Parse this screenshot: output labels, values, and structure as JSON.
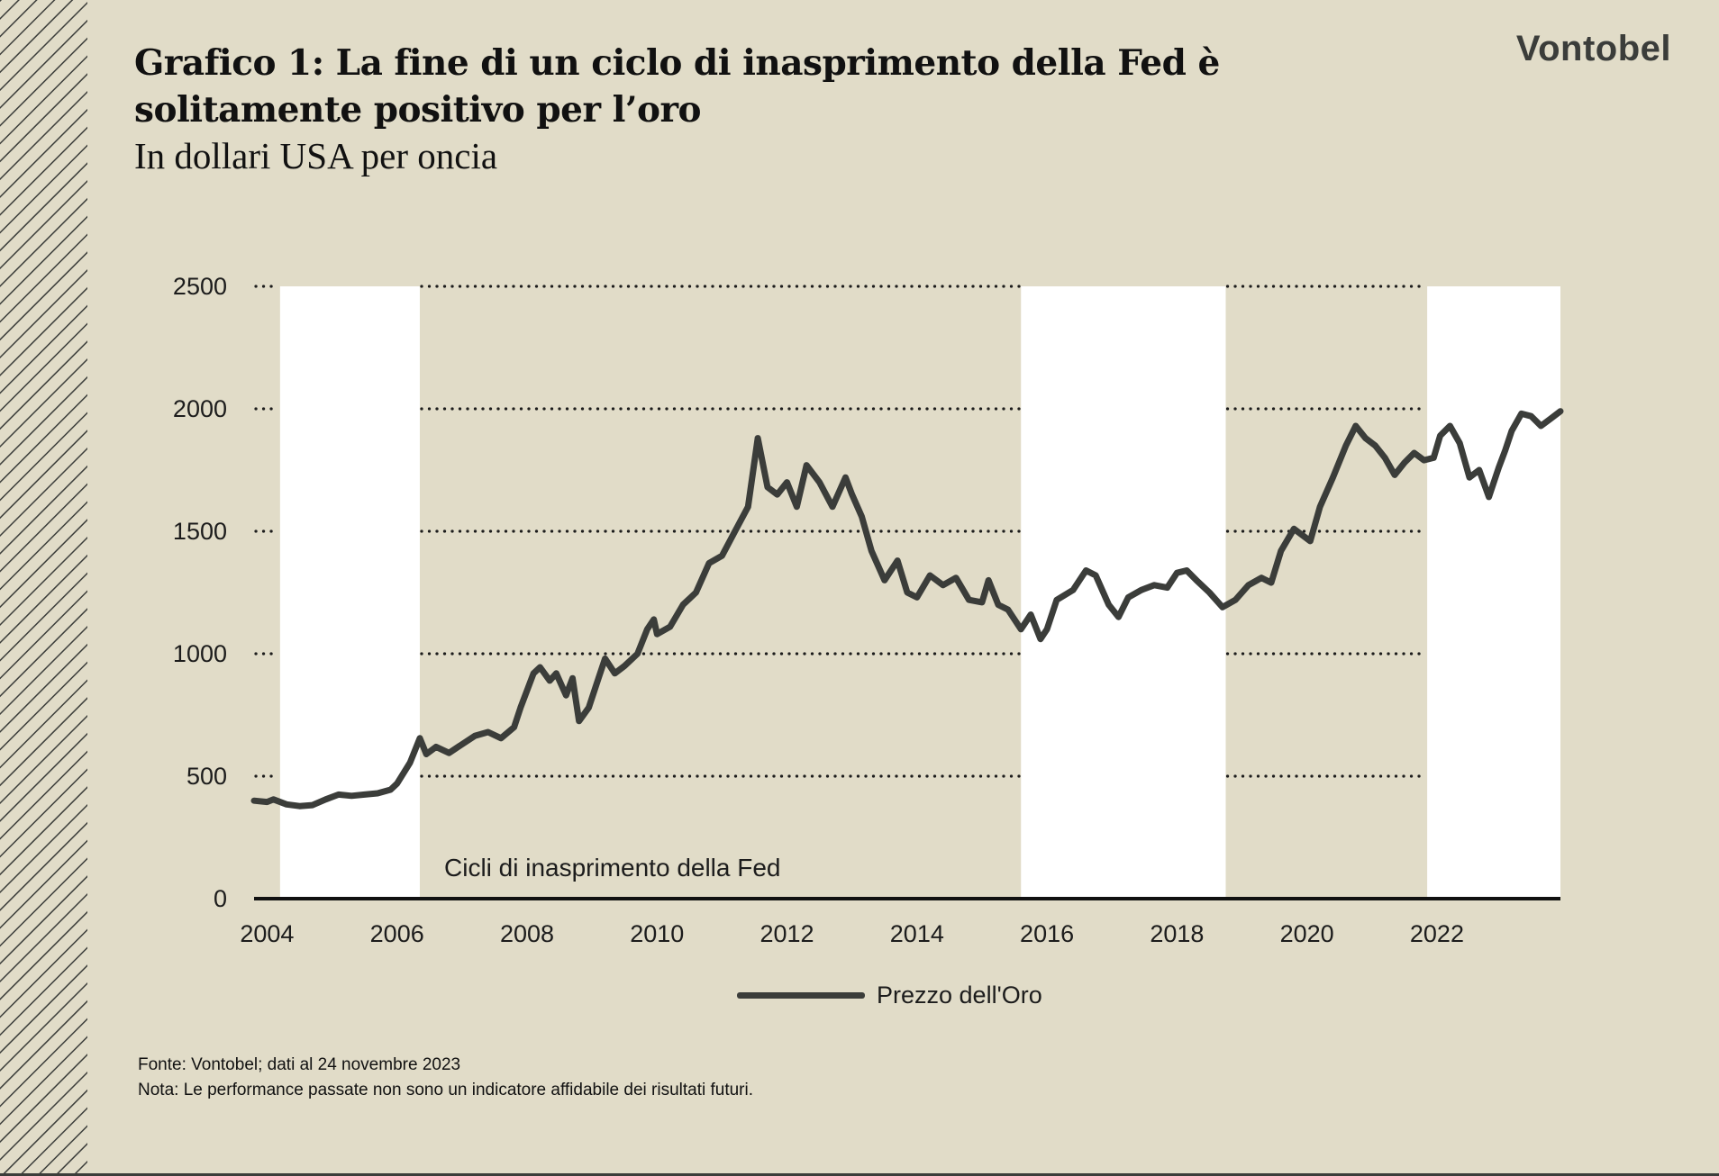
{
  "header": {
    "title": "Grafico 1: La fine di un ciclo di inasprimento della Fed è solitamente positivo per l’oro",
    "subtitle": "In dollari USA per oncia",
    "logo": "Vontobel"
  },
  "chart_data": {
    "type": "line",
    "title": "Grafico 1: La fine di un ciclo di inasprimento della Fed è solitamente positivo per l’oro",
    "subtitle": "In dollari USA per oncia",
    "xlabel": "",
    "ylabel": "",
    "xlim": [
      2003.8,
      2023.9
    ],
    "ylim": [
      0,
      2500
    ],
    "y_ticks": [
      0,
      500,
      1000,
      1500,
      2000,
      2500
    ],
    "x_ticks": [
      2004,
      2006,
      2008,
      2010,
      2012,
      2014,
      2016,
      2018,
      2020,
      2022
    ],
    "gridlines": "dotted horizontal",
    "legend_position": "bottom-center",
    "shaded_regions_label": "Cicli di inasprimento della Fed",
    "shaded_regions": [
      [
        2004.2,
        2006.35
      ],
      [
        2015.6,
        2018.75
      ],
      [
        2021.85,
        2023.9
      ]
    ],
    "series": [
      {
        "name": "Prezzo dell'Oro",
        "color": "#3b3d3a",
        "points": [
          [
            2003.8,
            400
          ],
          [
            2004.0,
            395
          ],
          [
            2004.1,
            405
          ],
          [
            2004.3,
            385
          ],
          [
            2004.5,
            378
          ],
          [
            2004.7,
            382
          ],
          [
            2004.9,
            405
          ],
          [
            2005.1,
            425
          ],
          [
            2005.3,
            420
          ],
          [
            2005.5,
            425
          ],
          [
            2005.7,
            430
          ],
          [
            2005.9,
            445
          ],
          [
            2006.0,
            470
          ],
          [
            2006.2,
            555
          ],
          [
            2006.35,
            655
          ],
          [
            2006.45,
            590
          ],
          [
            2006.6,
            620
          ],
          [
            2006.8,
            595
          ],
          [
            2007.0,
            630
          ],
          [
            2007.2,
            665
          ],
          [
            2007.4,
            680
          ],
          [
            2007.6,
            655
          ],
          [
            2007.8,
            700
          ],
          [
            2007.9,
            780
          ],
          [
            2008.1,
            920
          ],
          [
            2008.2,
            945
          ],
          [
            2008.35,
            890
          ],
          [
            2008.45,
            920
          ],
          [
            2008.6,
            830
          ],
          [
            2008.7,
            900
          ],
          [
            2008.8,
            725
          ],
          [
            2008.95,
            780
          ],
          [
            2009.1,
            900
          ],
          [
            2009.2,
            980
          ],
          [
            2009.35,
            920
          ],
          [
            2009.5,
            950
          ],
          [
            2009.7,
            1000
          ],
          [
            2009.85,
            1100
          ],
          [
            2009.95,
            1140
          ],
          [
            2010.0,
            1080
          ],
          [
            2010.2,
            1110
          ],
          [
            2010.4,
            1200
          ],
          [
            2010.6,
            1250
          ],
          [
            2010.8,
            1370
          ],
          [
            2011.0,
            1400
          ],
          [
            2011.2,
            1500
          ],
          [
            2011.4,
            1600
          ],
          [
            2011.55,
            1880
          ],
          [
            2011.7,
            1680
          ],
          [
            2011.85,
            1650
          ],
          [
            2012.0,
            1700
          ],
          [
            2012.15,
            1600
          ],
          [
            2012.3,
            1770
          ],
          [
            2012.5,
            1700
          ],
          [
            2012.7,
            1600
          ],
          [
            2012.9,
            1720
          ],
          [
            2013.0,
            1650
          ],
          [
            2013.15,
            1560
          ],
          [
            2013.3,
            1420
          ],
          [
            2013.5,
            1300
          ],
          [
            2013.7,
            1380
          ],
          [
            2013.85,
            1250
          ],
          [
            2014.0,
            1230
          ],
          [
            2014.2,
            1320
          ],
          [
            2014.4,
            1280
          ],
          [
            2014.6,
            1310
          ],
          [
            2014.8,
            1220
          ],
          [
            2015.0,
            1210
          ],
          [
            2015.1,
            1300
          ],
          [
            2015.25,
            1200
          ],
          [
            2015.4,
            1180
          ],
          [
            2015.6,
            1100
          ],
          [
            2015.75,
            1160
          ],
          [
            2015.9,
            1060
          ],
          [
            2016.0,
            1100
          ],
          [
            2016.15,
            1220
          ],
          [
            2016.4,
            1260
          ],
          [
            2016.6,
            1340
          ],
          [
            2016.75,
            1320
          ],
          [
            2016.95,
            1200
          ],
          [
            2017.1,
            1150
          ],
          [
            2017.25,
            1230
          ],
          [
            2017.45,
            1260
          ],
          [
            2017.65,
            1280
          ],
          [
            2017.85,
            1270
          ],
          [
            2018.0,
            1330
          ],
          [
            2018.15,
            1340
          ],
          [
            2018.3,
            1300
          ],
          [
            2018.5,
            1250
          ],
          [
            2018.7,
            1190
          ],
          [
            2018.9,
            1220
          ],
          [
            2019.1,
            1280
          ],
          [
            2019.3,
            1310
          ],
          [
            2019.45,
            1290
          ],
          [
            2019.6,
            1420
          ],
          [
            2019.8,
            1510
          ],
          [
            2019.95,
            1480
          ],
          [
            2020.05,
            1460
          ],
          [
            2020.2,
            1600
          ],
          [
            2020.4,
            1720
          ],
          [
            2020.6,
            1850
          ],
          [
            2020.75,
            1930
          ],
          [
            2020.9,
            1880
          ],
          [
            2021.05,
            1850
          ],
          [
            2021.2,
            1800
          ],
          [
            2021.35,
            1730
          ],
          [
            2021.5,
            1780
          ],
          [
            2021.65,
            1820
          ],
          [
            2021.8,
            1790
          ],
          [
            2021.95,
            1800
          ],
          [
            2022.05,
            1890
          ],
          [
            2022.2,
            1930
          ],
          [
            2022.35,
            1860
          ],
          [
            2022.5,
            1720
          ],
          [
            2022.65,
            1750
          ],
          [
            2022.8,
            1640
          ],
          [
            2022.95,
            1760
          ],
          [
            2023.05,
            1830
          ],
          [
            2023.15,
            1910
          ],
          [
            2023.3,
            1980
          ],
          [
            2023.45,
            1970
          ],
          [
            2023.6,
            1930
          ],
          [
            2023.75,
            1960
          ],
          [
            2023.9,
            1990
          ]
        ]
      }
    ]
  },
  "legend": {
    "label": "Prezzo dell'Oro"
  },
  "footnotes": {
    "source": "Fonte: Vontobel; dati al 24 novembre 2023",
    "note": "Nota: Le performance passate non sono un indicatore affidabile dei risultati futuri."
  }
}
